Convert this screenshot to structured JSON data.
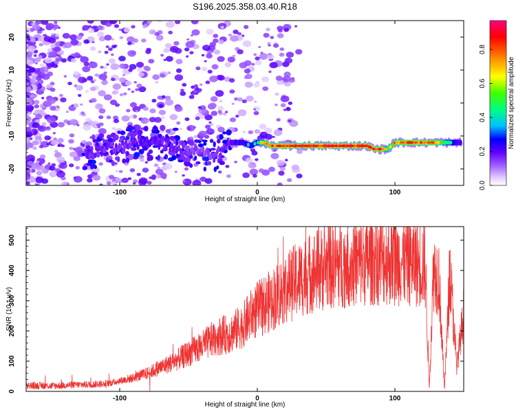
{
  "title": "S196.2025.358.03.40.R18",
  "chart_data": [
    {
      "type": "heatmap",
      "title": "S196.2025.358.03.40.R18",
      "xlabel": "Height of straight line (km)",
      "ylabel": "Frequency (Hz)",
      "xlim": [
        -168,
        150
      ],
      "ylim": [
        -25,
        25
      ],
      "xticks": [
        "-100",
        "0",
        "100"
      ],
      "yticks": [
        "-20",
        "-10",
        "0",
        "10",
        "20"
      ],
      "colorbar": {
        "label": "Normalized spectral amplitude",
        "range": [
          0,
          0.97
        ],
        "ticks": [
          "0.0",
          "0.2",
          "0.4",
          "0.6",
          "0.8"
        ],
        "colors": [
          "#ffffff",
          "#e0c8ff",
          "#a060ff",
          "#6000ff",
          "#0000ff",
          "#00c0ff",
          "#00ff80",
          "#40ff00",
          "#ffff00",
          "#ff8000",
          "#ff0000",
          "#ff0080"
        ]
      },
      "ridge": {
        "x": [
          -120,
          -110,
          -100,
          -90,
          -80,
          -70,
          -60,
          -50,
          -40,
          -30,
          -20,
          -15,
          -10,
          -5,
          0,
          5,
          10,
          20,
          40,
          60,
          80,
          85,
          90,
          95,
          100,
          110,
          120,
          130,
          140,
          145
        ],
        "y": [
          -15,
          -14,
          -13,
          -12,
          -12,
          -12,
          -13,
          -14,
          -15,
          -16,
          -12,
          -12,
          -12,
          -13,
          -12,
          -12,
          -13,
          -13,
          -13,
          -13,
          -13,
          -14,
          -14,
          -14,
          -12,
          -12,
          -12,
          -12,
          -12,
          -12
        ],
        "amplitude": [
          0.3,
          0.32,
          0.3,
          0.35,
          0.38,
          0.32,
          0.3,
          0.28,
          0.25,
          0.28,
          0.35,
          0.4,
          0.42,
          0.45,
          0.5,
          0.7,
          0.8,
          0.85,
          0.9,
          0.92,
          0.9,
          0.88,
          0.85,
          0.6,
          0.75,
          0.8,
          0.82,
          0.8,
          0.5,
          0.4
        ]
      }
    },
    {
      "type": "line",
      "xlabel": "Height of straight line (km)",
      "ylabel": "SNR (10 * v/v)",
      "xlim": [
        -168,
        150
      ],
      "ylim": [
        0,
        545
      ],
      "xticks": [
        "-100",
        "0",
        "100"
      ],
      "yticks": [
        "0",
        "100",
        "200",
        "300",
        "400",
        "500"
      ],
      "color": "#ee3333",
      "series": [
        {
          "name": "SNR",
          "x": [
            -168,
            -150,
            -130,
            -110,
            -100,
            -90,
            -80,
            -70,
            -60,
            -50,
            -40,
            -30,
            -20,
            -10,
            -5,
            0,
            10,
            20,
            30,
            40,
            50,
            60,
            70,
            80,
            90,
            100,
            110,
            118,
            122,
            125,
            128,
            132,
            136,
            140,
            145,
            150
          ],
          "y": [
            20,
            18,
            22,
            25,
            35,
            45,
            60,
            80,
            100,
            125,
            150,
            180,
            190,
            220,
            250,
            270,
            300,
            340,
            370,
            395,
            410,
            420,
            425,
            430,
            435,
            432,
            430,
            425,
            420,
            5,
            400,
            380,
            5,
            395,
            80,
            260
          ]
        }
      ]
    }
  ]
}
